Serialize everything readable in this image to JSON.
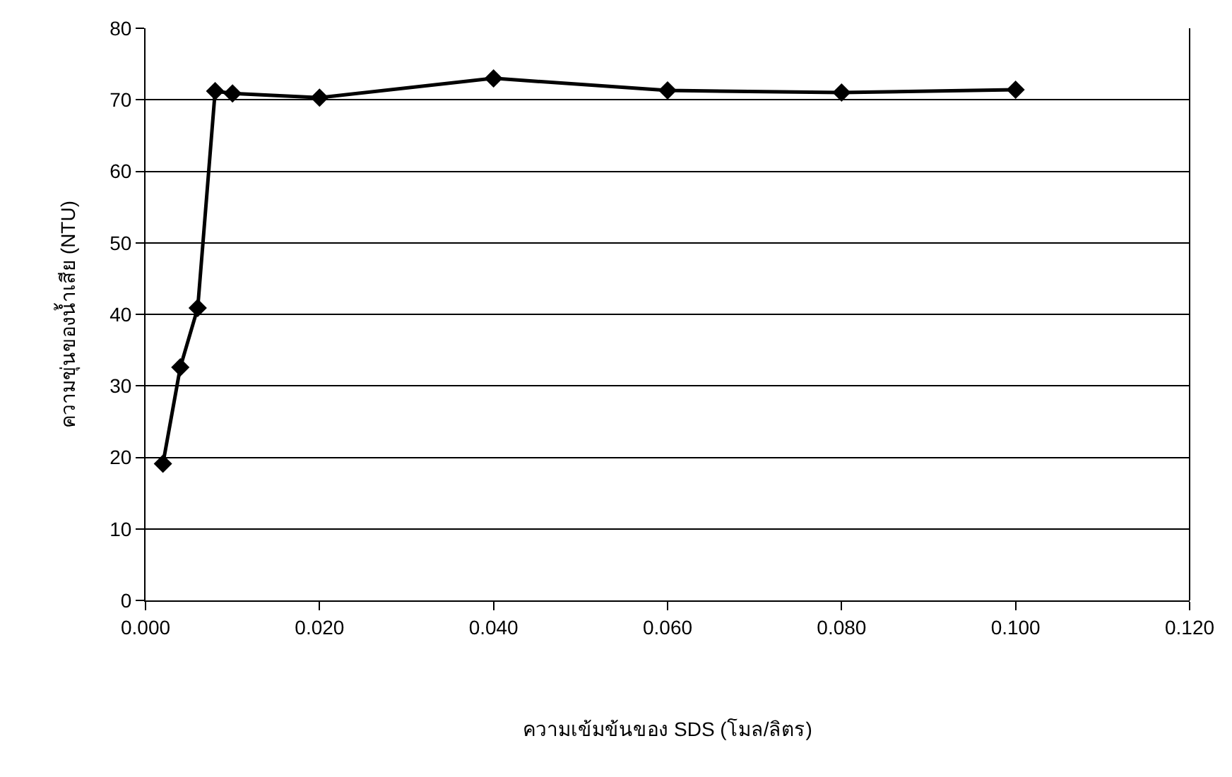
{
  "chart_data": {
    "type": "line",
    "xlabel": "ความเข้มข้นของ SDS (โมล/ลิตร)",
    "ylabel": "ความขุ่นของน้ำเสีย (NTU)",
    "x": [
      0.002,
      0.004,
      0.006,
      0.008,
      0.01,
      0.02,
      0.04,
      0.06,
      0.08,
      0.1
    ],
    "series": [
      {
        "color": "#000000",
        "values": [
          19.1,
          32.6,
          40.9,
          71.2,
          70.9,
          70.3,
          73.0,
          71.3,
          71.0,
          71.4
        ]
      }
    ],
    "xlim": [
      0,
      0.12
    ],
    "xticks": [
      {
        "value": 0,
        "label": "0.000"
      },
      {
        "value": 0.02,
        "label": "0.020"
      },
      {
        "value": 0.04,
        "label": "0.040"
      },
      {
        "value": 0.06,
        "label": "0.060"
      },
      {
        "value": 0.08,
        "label": "0.080"
      },
      {
        "value": 0.1,
        "label": "0.100"
      },
      {
        "value": 0.12,
        "label": "0.120"
      }
    ],
    "ylim": [
      0,
      80
    ],
    "yticks": [
      0,
      10,
      20,
      30,
      40,
      50,
      60,
      70,
      80
    ],
    "grid": "y",
    "marker": "diamond",
    "line_style": "solid"
  }
}
